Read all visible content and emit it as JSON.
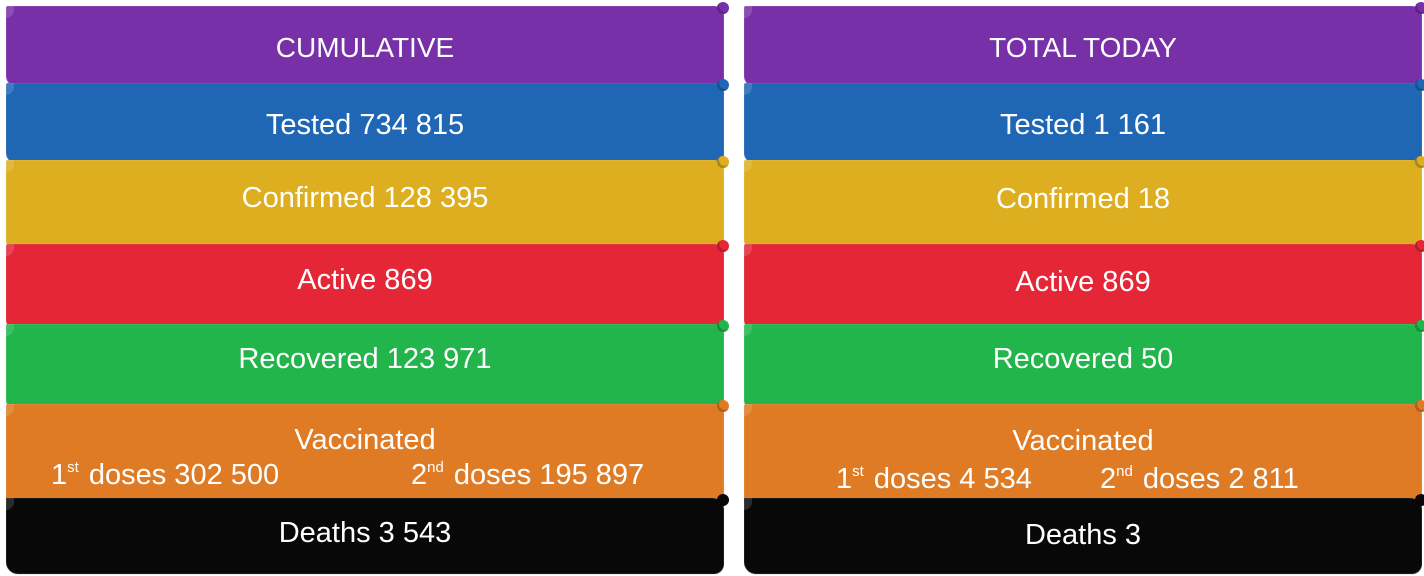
{
  "panels": [
    {
      "title": "CUMULATIVE",
      "tested": "Tested 734 815",
      "confirmed": "Confirmed 128 395",
      "active": "Active 869",
      "recovered": "Recovered 123 971",
      "vaccinated_title": "Vaccinated",
      "first_dose_ordinal": "1",
      "first_dose_suffix": "st",
      "first_dose_text": " doses 302 500",
      "second_dose_ordinal": "2",
      "second_dose_suffix": "nd",
      "second_dose_text": " doses 195 897",
      "deaths": "Deaths 3 543"
    },
    {
      "title": "TOTAL TODAY",
      "tested": "Tested 1 161",
      "confirmed": "Confirmed 18",
      "active": "Active 869",
      "recovered": "Recovered 50",
      "vaccinated_title": "Vaccinated",
      "first_dose_ordinal": "1",
      "first_dose_suffix": "st",
      "first_dose_text": " doses 4 534",
      "second_dose_ordinal": "2",
      "second_dose_suffix": "nd",
      "second_dose_text": " doses 2 811",
      "deaths": "Deaths 3"
    }
  ]
}
